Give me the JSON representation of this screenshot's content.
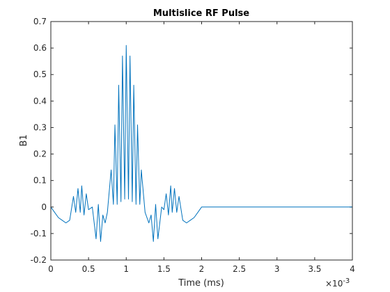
{
  "chart_data": {
    "type": "line",
    "title": "Multislice RF Pulse",
    "xlabel": "Time (ms)",
    "ylabel": "B1",
    "x_exponent_label": "×10",
    "x_exponent": "-3",
    "xlim": [
      0,
      0.004
    ],
    "ylim": [
      -0.2,
      0.7
    ],
    "x_ticks": [
      0,
      0.0005,
      0.001,
      0.0015,
      0.002,
      0.0025,
      0.003,
      0.0035,
      0.004
    ],
    "x_tick_labels": [
      "0",
      "0.5",
      "1",
      "1.5",
      "2",
      "2.5",
      "3",
      "3.5",
      "4"
    ],
    "y_ticks": [
      -0.2,
      -0.1,
      0,
      0.1,
      0.2,
      0.3,
      0.4,
      0.5,
      0.6,
      0.7
    ],
    "y_tick_labels": [
      "-0.2",
      "-0.1",
      "0",
      "0.1",
      "0.2",
      "0.3",
      "0.4",
      "0.5",
      "0.6",
      "0.7"
    ],
    "grid": false,
    "line_color": "#0072BD",
    "series": [
      {
        "values": [
          [
            0,
            0
          ],
          [
            5e-05,
            -0.02
          ],
          [
            0.0001,
            -0.04
          ],
          [
            0.00015,
            -0.05
          ],
          [
            0.0002,
            -0.06
          ],
          [
            0.00025,
            -0.05
          ],
          [
            0.0003,
            0.04
          ],
          [
            0.00033,
            -0.02
          ],
          [
            0.00036,
            0.07
          ],
          [
            0.00039,
            -0.02
          ],
          [
            0.00041,
            0.08
          ],
          [
            0.00044,
            -0.03
          ],
          [
            0.00047,
            0.05
          ],
          [
            0.0005,
            -0.01
          ],
          [
            0.00055,
            0
          ],
          [
            0.0006,
            -0.12
          ],
          [
            0.00063,
            0.01
          ],
          [
            0.00066,
            -0.13
          ],
          [
            0.00069,
            -0.03
          ],
          [
            0.00072,
            -0.06
          ],
          [
            0.00075,
            -0.02
          ],
          [
            0.0008,
            0.14
          ],
          [
            0.00083,
            0.01
          ],
          [
            0.00085,
            0.31
          ],
          [
            0.00088,
            0.01
          ],
          [
            0.0009,
            0.46
          ],
          [
            0.00093,
            0.02
          ],
          [
            0.00095,
            0.57
          ],
          [
            0.00098,
            0.03
          ],
          [
            0.001,
            0.61
          ],
          [
            0.00103,
            0.03
          ],
          [
            0.00105,
            0.57
          ],
          [
            0.00108,
            0.02
          ],
          [
            0.0011,
            0.46
          ],
          [
            0.00113,
            0.01
          ],
          [
            0.00115,
            0.31
          ],
          [
            0.00118,
            0.01
          ],
          [
            0.0012,
            0.14
          ],
          [
            0.00125,
            -0.02
          ],
          [
            0.0013,
            -0.06
          ],
          [
            0.00133,
            -0.03
          ],
          [
            0.00136,
            -0.13
          ],
          [
            0.00139,
            0.01
          ],
          [
            0.00142,
            -0.12
          ],
          [
            0.00147,
            0
          ],
          [
            0.0015,
            -0.01
          ],
          [
            0.00153,
            0.05
          ],
          [
            0.00156,
            -0.03
          ],
          [
            0.00159,
            0.08
          ],
          [
            0.00161,
            -0.02
          ],
          [
            0.00164,
            0.07
          ],
          [
            0.00167,
            -0.02
          ],
          [
            0.0017,
            0.04
          ],
          [
            0.00175,
            -0.05
          ],
          [
            0.0018,
            -0.06
          ],
          [
            0.00185,
            -0.05
          ],
          [
            0.0019,
            -0.04
          ],
          [
            0.00195,
            -0.02
          ],
          [
            0.002,
            0
          ],
          [
            0.004,
            0
          ]
        ]
      }
    ]
  }
}
